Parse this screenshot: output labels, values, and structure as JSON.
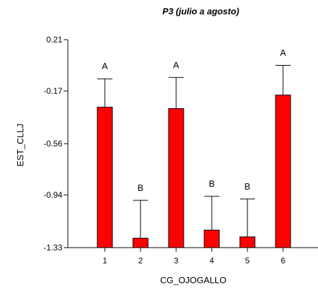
{
  "chart_data": {
    "type": "bar",
    "title": "P3 (julio a agosto)",
    "xlabel": "CG_OJOGALLO",
    "ylabel": "EST_CLLJ",
    "categories": [
      "1",
      "2",
      "3",
      "4",
      "5",
      "6"
    ],
    "values": [
      -0.29,
      -1.26,
      -0.3,
      -1.2,
      -1.25,
      -0.2
    ],
    "error_upper": [
      -0.08,
      -0.98,
      -0.07,
      -0.95,
      -0.97,
      0.02
    ],
    "group_letters": [
      "A",
      "B",
      "A",
      "B",
      "B",
      "A"
    ],
    "yticks": [
      0.21,
      -0.17,
      -0.56,
      -0.94,
      -1.33
    ],
    "ytick_labels": [
      "0.21",
      "-0.17",
      "-0.56",
      "-0.94",
      "-1.33"
    ],
    "ylim": [
      -1.33,
      0.21
    ],
    "grid": false,
    "bar_color": "#ff0000",
    "bar_edge_color": "#000000"
  }
}
